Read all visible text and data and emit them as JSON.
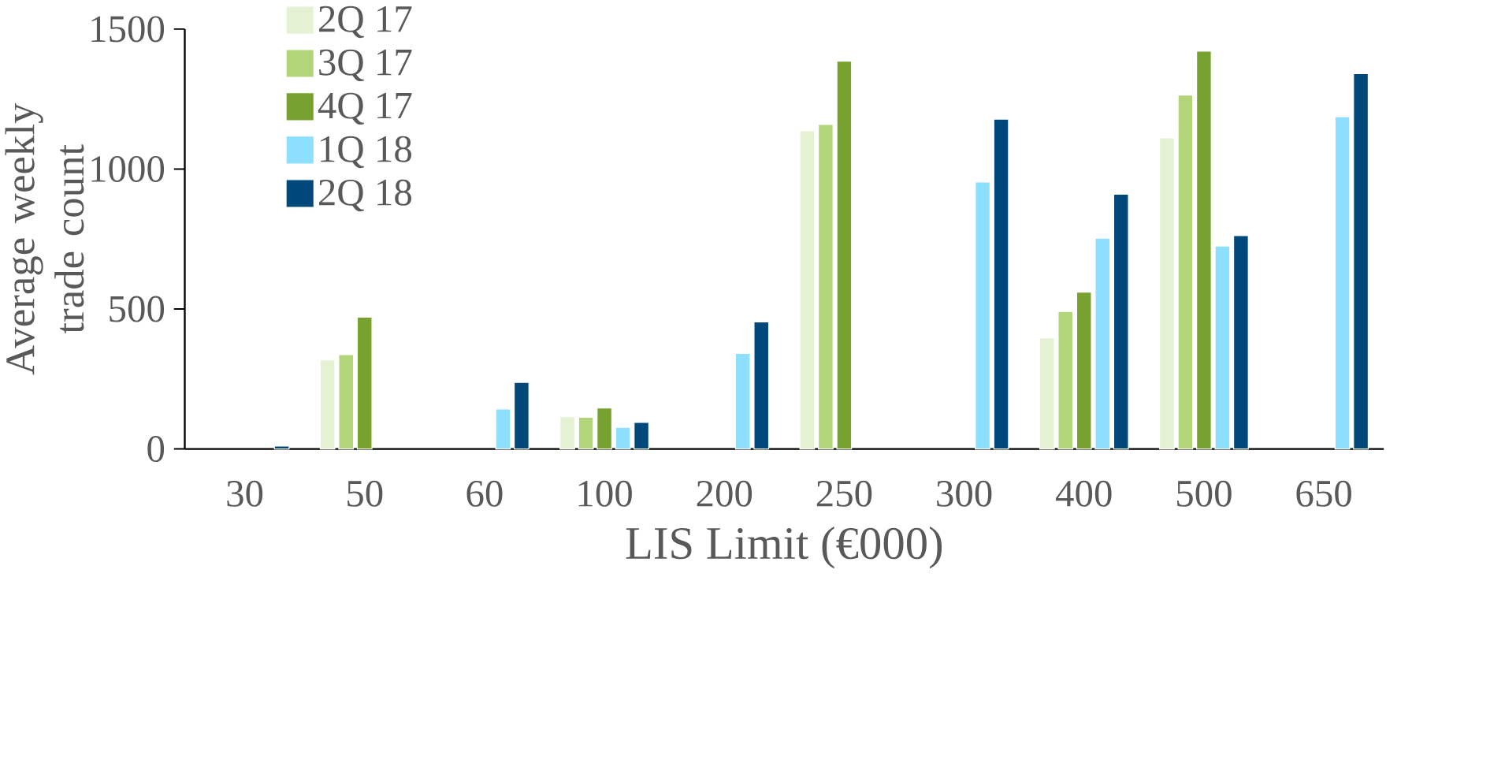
{
  "chart_data": {
    "type": "bar",
    "xlabel": "LIS Limit (€000)",
    "ylabel": "Average weekly trade count",
    "categories": [
      "30",
      "50",
      "60",
      "100",
      "200",
      "250",
      "300",
      "400",
      "500",
      "650"
    ],
    "series": [
      {
        "name": "2Q 17",
        "color": "#e5f1d3",
        "values": [
          null,
          318,
          null,
          115,
          null,
          1137,
          null,
          396,
          1111,
          null
        ]
      },
      {
        "name": "3Q 17",
        "color": "#b3d57a",
        "values": [
          null,
          337,
          null,
          113,
          null,
          1159,
          null,
          491,
          1264,
          null
        ]
      },
      {
        "name": "4Q 17",
        "color": "#78a22f",
        "values": [
          null,
          471,
          null,
          146,
          null,
          1385,
          null,
          560,
          1421,
          null
        ]
      },
      {
        "name": "1Q 18",
        "color": "#8ddfff",
        "values": [
          null,
          null,
          143,
          77,
          341,
          null,
          954,
          753,
          725,
          1187
        ]
      },
      {
        "name": "2Q 18",
        "color": "#00477a",
        "values": [
          10,
          null,
          238,
          95,
          454,
          null,
          1178,
          910,
          762,
          1341
        ]
      }
    ],
    "ylim": [
      0,
      1500
    ],
    "yticks": [
      0,
      500,
      1000,
      1500
    ],
    "legend": "top left"
  }
}
